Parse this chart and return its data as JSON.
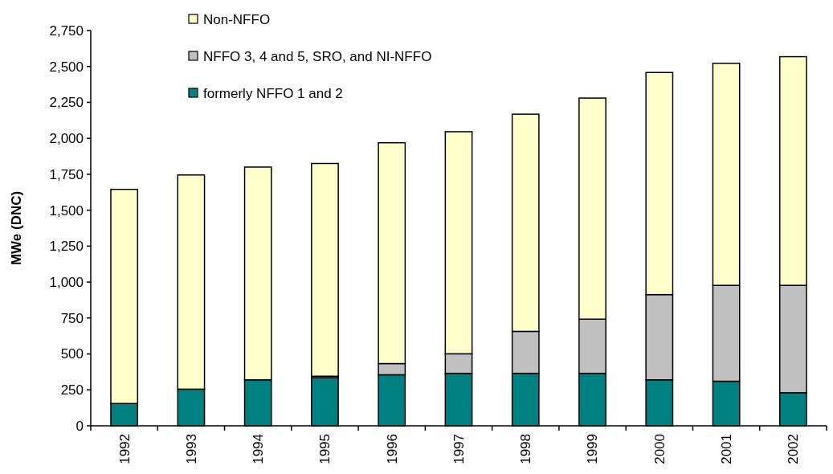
{
  "chart_data": {
    "type": "bar",
    "stacked": true,
    "ylabel": "MWe (DNC)",
    "categories": [
      "1992",
      "1993",
      "1994",
      "1995",
      "1996",
      "1997",
      "1998",
      "1999",
      "2000",
      "2001",
      "2002"
    ],
    "series": [
      {
        "name": "formerly NFFO 1 and 2",
        "color": "#008080",
        "values": [
          155,
          255,
          320,
          335,
          355,
          365,
          365,
          365,
          320,
          310,
          230
        ]
      },
      {
        "name": "NFFO 3, 4 and 5, SRO, and NI-NFFO",
        "color": "#c0c0c0",
        "values": [
          0,
          0,
          0,
          10,
          78,
          136,
          292,
          377,
          593,
          667,
          747
        ]
      },
      {
        "name": "Non-NFFO",
        "color": "#ffffcc",
        "values": [
          1490,
          1490,
          1480,
          1480,
          1536,
          1545,
          1511,
          1538,
          1545,
          1545,
          1591
        ]
      }
    ],
    "ylim": [
      0,
      2750
    ],
    "yticks": [
      {
        "value": 0,
        "label": "0"
      },
      {
        "value": 250,
        "label": "250"
      },
      {
        "value": 500,
        "label": "500"
      },
      {
        "value": 750,
        "label": "750"
      },
      {
        "value": 1000,
        "label": "1,000"
      },
      {
        "value": 1250,
        "label": "1,250"
      },
      {
        "value": 1500,
        "label": "1,500"
      },
      {
        "value": 1750,
        "label": "1,750"
      },
      {
        "value": 2000,
        "label": "2,000"
      },
      {
        "value": 2250,
        "label": "2,250"
      },
      {
        "value": 2500,
        "label": "2,500"
      },
      {
        "value": 2750,
        "label": "2,750"
      }
    ],
    "grid": false,
    "legend": "top"
  }
}
